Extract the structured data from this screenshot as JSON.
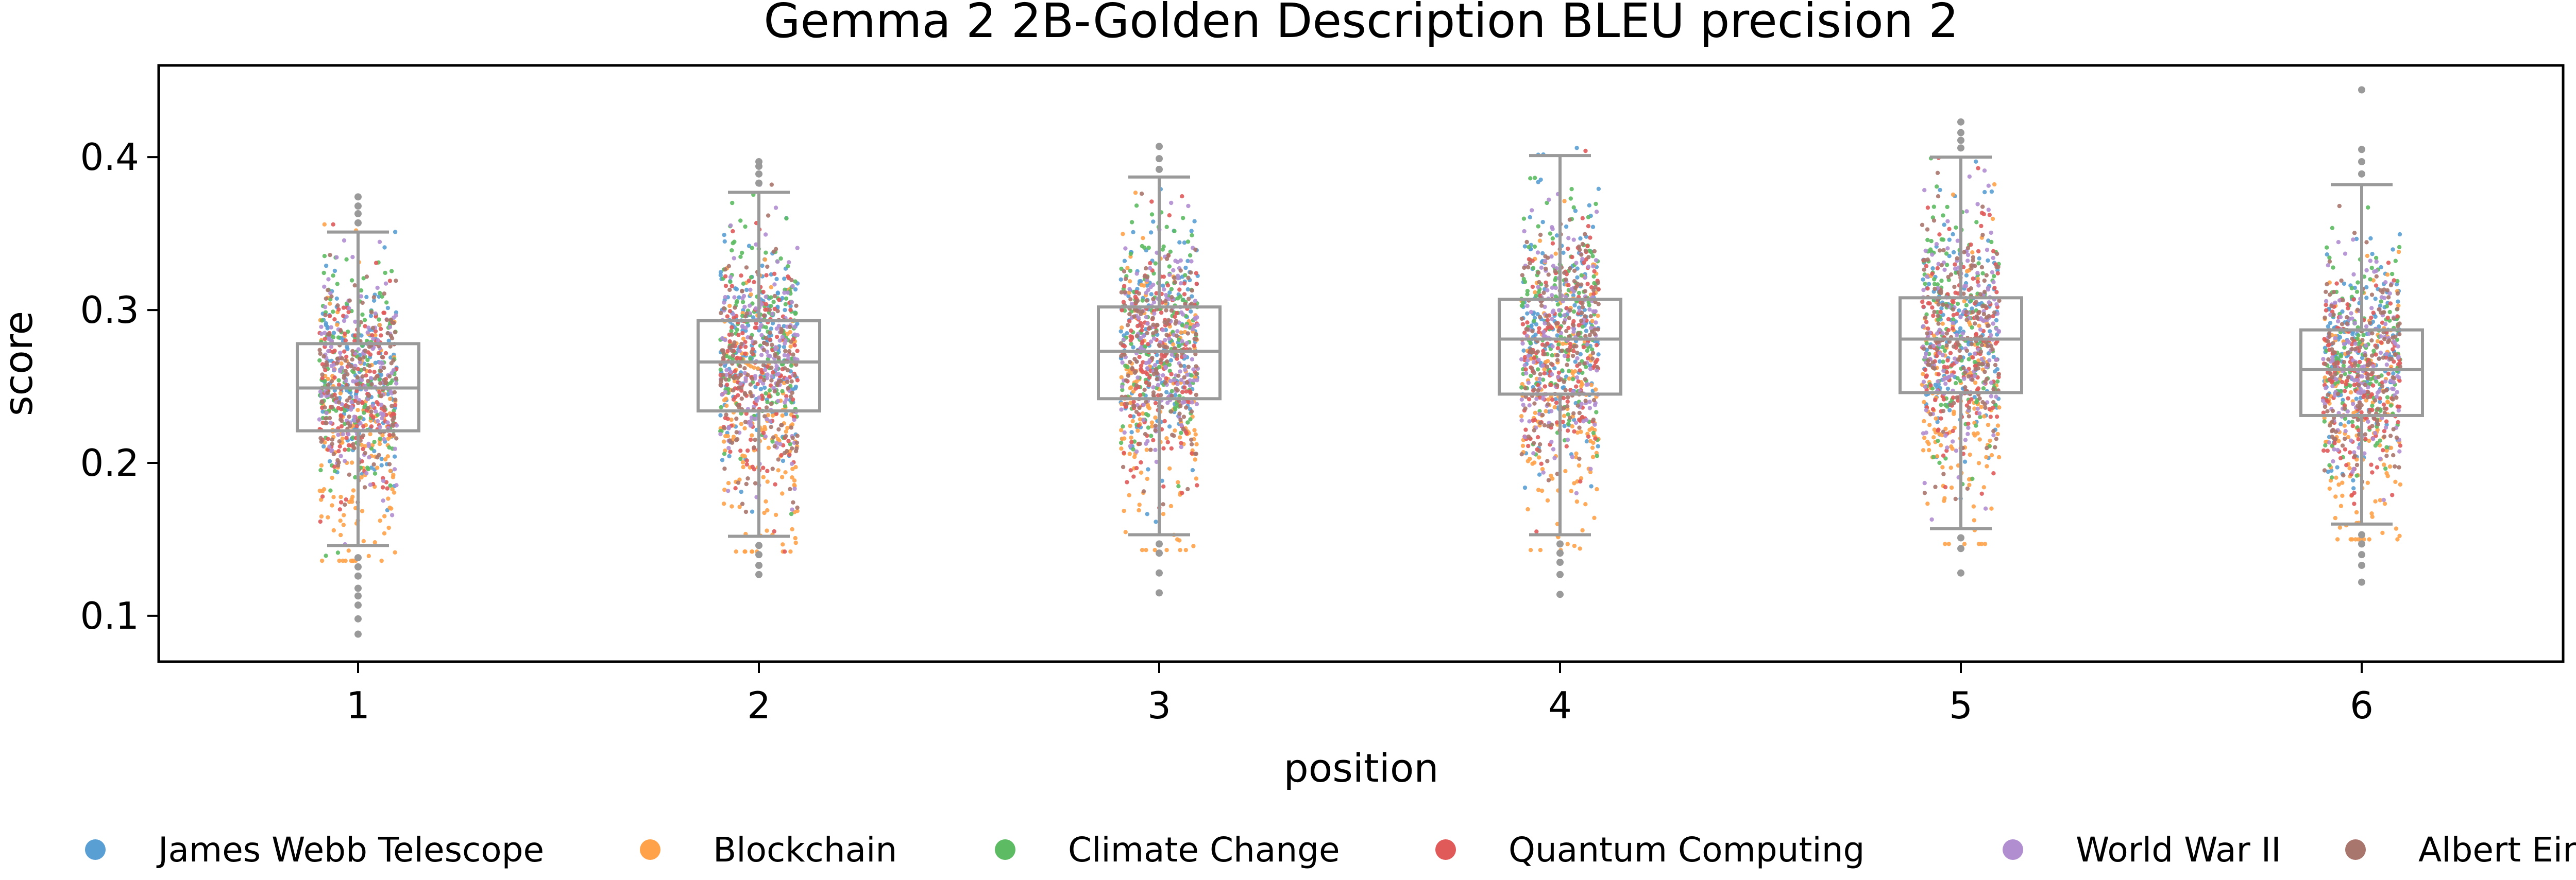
{
  "chart_data": {
    "type": "box_strip",
    "title": "Gemma 2 2B-Golden Description BLEU precision 2",
    "xlabel": "position",
    "ylabel": "score",
    "categories": [
      "1",
      "2",
      "3",
      "4",
      "5",
      "6"
    ],
    "ylim": [
      0.07,
      0.46
    ],
    "yticks": [
      0.1,
      0.2,
      0.3,
      0.4
    ],
    "ytick_labels": [
      "0.1",
      "0.2",
      "0.3",
      "0.4"
    ],
    "grid": false,
    "legend_position": "bottom",
    "boxes": [
      {
        "position": "1",
        "q1": 0.221,
        "median": 0.249,
        "q3": 0.278,
        "whisker_low": 0.146,
        "whisker_high": 0.351,
        "outliers": [
          0.138,
          0.132,
          0.126,
          0.118,
          0.113,
          0.107,
          0.098,
          0.088,
          0.357,
          0.363,
          0.368,
          0.374
        ]
      },
      {
        "position": "2",
        "q1": 0.234,
        "median": 0.266,
        "q3": 0.293,
        "whisker_low": 0.152,
        "whisker_high": 0.377,
        "outliers": [
          0.146,
          0.14,
          0.133,
          0.127,
          0.383,
          0.389,
          0.394,
          0.397
        ]
      },
      {
        "position": "3",
        "q1": 0.242,
        "median": 0.273,
        "q3": 0.302,
        "whisker_low": 0.153,
        "whisker_high": 0.387,
        "outliers": [
          0.147,
          0.141,
          0.128,
          0.115,
          0.392,
          0.399,
          0.407
        ]
      },
      {
        "position": "4",
        "q1": 0.245,
        "median": 0.281,
        "q3": 0.307,
        "whisker_low": 0.153,
        "whisker_high": 0.401,
        "outliers": [
          0.147,
          0.141,
          0.135,
          0.127,
          0.114
        ]
      },
      {
        "position": "5",
        "q1": 0.246,
        "median": 0.281,
        "q3": 0.308,
        "whisker_low": 0.157,
        "whisker_high": 0.4,
        "outliers": [
          0.151,
          0.144,
          0.128,
          0.406,
          0.411,
          0.416,
          0.423
        ]
      },
      {
        "position": "6",
        "q1": 0.231,
        "median": 0.261,
        "q3": 0.287,
        "whisker_low": 0.16,
        "whisker_high": 0.382,
        "outliers": [
          0.153,
          0.147,
          0.14,
          0.133,
          0.122,
          0.389,
          0.397,
          0.405,
          0.444
        ]
      }
    ],
    "series": [
      {
        "name": "James Webb Telescope",
        "color": "#5a9fd4",
        "mean_offset": 0.012
      },
      {
        "name": "Blockchain",
        "color": "#ffa24a",
        "mean_offset": -0.06
      },
      {
        "name": "Climate Change",
        "color": "#5dbb63",
        "mean_offset": 0.02
      },
      {
        "name": "Quantum Computing",
        "color": "#e05a5a",
        "mean_offset": -0.01
      },
      {
        "name": "World War II",
        "color": "#b08ed0",
        "mean_offset": 0.0
      },
      {
        "name": "Albert Einstein",
        "color": "#a9766d",
        "mean_offset": 0.0
      }
    ],
    "box_color": "#9a9a9a"
  }
}
